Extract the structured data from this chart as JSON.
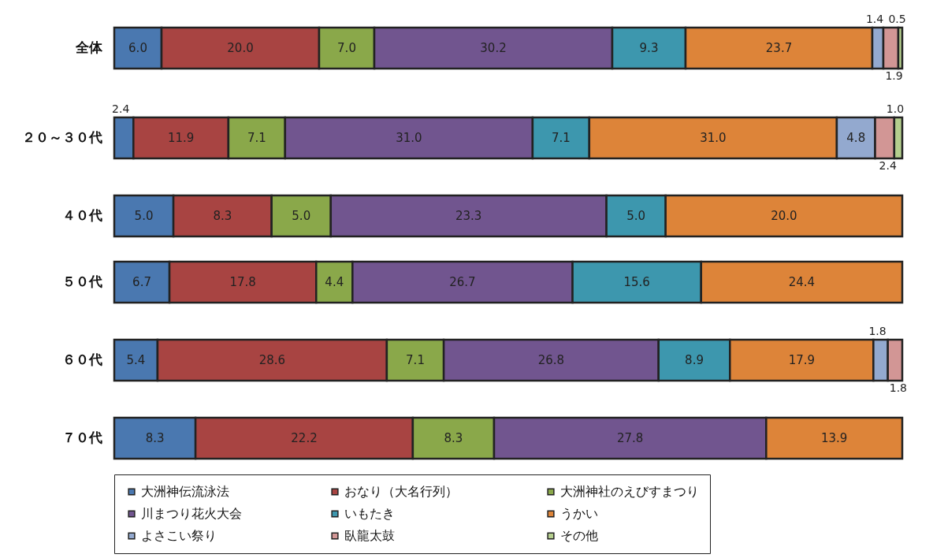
{
  "chart_data": [
    {
      "type": "bar",
      "orientation": "horizontal",
      "stacked": true,
      "legend": false,
      "tick_labels": "y",
      "categories": [
        "全体"
      ],
      "series": [
        {
          "color": "#4a78b0",
          "values": [
            6.0
          ],
          "value_labels": [
            "6.0"
          ]
        },
        {
          "color": "#a84442",
          "values": [
            20.0
          ],
          "value_labels": [
            "20.0"
          ]
        },
        {
          "color": "#8aa84a",
          "values": [
            7.0
          ],
          "value_labels": [
            "7.0"
          ]
        },
        {
          "color": "#71558f",
          "values": [
            30.2
          ],
          "value_labels": [
            "30.2"
          ]
        },
        {
          "color": "#3d97ae",
          "values": [
            9.3
          ],
          "value_labels": [
            "9.3"
          ]
        },
        {
          "color": "#dd8439",
          "values": [
            23.7
          ],
          "value_labels": [
            "23.7"
          ]
        },
        {
          "color": "#93a9cf",
          "values": [
            1.4
          ],
          "value_labels": [
            "1.4"
          ]
        },
        {
          "color": "#d29695",
          "values": [
            1.9
          ],
          "value_labels": [
            "1.9"
          ]
        },
        {
          "color": "#b5cf8e",
          "values": [
            0.5
          ],
          "value_labels": [
            "0.5"
          ]
        }
      ]
    },
    {
      "type": "bar",
      "orientation": "horizontal",
      "stacked": true,
      "legend": false,
      "tick_labels": "y",
      "categories": [
        "２０～３０代"
      ],
      "series": [
        {
          "color": "#4a78b0",
          "values": [
            2.4
          ],
          "value_labels": [
            "2.4"
          ]
        },
        {
          "color": "#a84442",
          "values": [
            11.9
          ],
          "value_labels": [
            "11.9"
          ]
        },
        {
          "color": "#8aa84a",
          "values": [
            7.1
          ],
          "value_labels": [
            "7.1"
          ]
        },
        {
          "color": "#71558f",
          "values": [
            31.0
          ],
          "value_labels": [
            "31.0"
          ]
        },
        {
          "color": "#3d97ae",
          "values": [
            7.1
          ],
          "value_labels": [
            "7.1"
          ]
        },
        {
          "color": "#dd8439",
          "values": [
            31.0
          ],
          "value_labels": [
            "31.0"
          ]
        },
        {
          "color": "#93a9cf",
          "values": [
            4.8
          ],
          "value_labels": [
            "4.8"
          ]
        },
        {
          "color": "#d29695",
          "values": [
            2.4
          ],
          "value_labels": [
            "2.4"
          ]
        },
        {
          "color": "#b5cf8e",
          "values": [
            1.0
          ],
          "value_labels": [
            "1.0"
          ]
        }
      ]
    },
    {
      "type": "bar",
      "orientation": "horizontal",
      "stacked": true,
      "legend": false,
      "tick_labels": "y",
      "categories": [
        "４０代"
      ],
      "series": [
        {
          "color": "#4a78b0",
          "values": [
            5.0
          ],
          "value_labels": [
            "5.0"
          ]
        },
        {
          "color": "#a84442",
          "values": [
            8.3
          ],
          "value_labels": [
            "8.3"
          ]
        },
        {
          "color": "#8aa84a",
          "values": [
            5.0
          ],
          "value_labels": [
            "5.0"
          ]
        },
        {
          "color": "#71558f",
          "values": [
            23.3
          ],
          "value_labels": [
            "23.3"
          ]
        },
        {
          "color": "#3d97ae",
          "values": [
            5.0
          ],
          "value_labels": [
            "5.0"
          ]
        },
        {
          "color": "#dd8439",
          "values": [
            20.0
          ],
          "value_labels": [
            "20.0"
          ]
        }
      ]
    },
    {
      "type": "bar",
      "orientation": "horizontal",
      "stacked": true,
      "legend": false,
      "tick_labels": "y",
      "categories": [
        "５０代"
      ],
      "series": [
        {
          "color": "#4a78b0",
          "values": [
            6.7
          ],
          "value_labels": [
            "6.7"
          ]
        },
        {
          "color": "#a84442",
          "values": [
            17.8
          ],
          "value_labels": [
            "17.8"
          ]
        },
        {
          "color": "#8aa84a",
          "values": [
            4.4
          ],
          "value_labels": [
            "4.4"
          ]
        },
        {
          "color": "#71558f",
          "values": [
            26.7
          ],
          "value_labels": [
            "26.7"
          ]
        },
        {
          "color": "#3d97ae",
          "values": [
            15.6
          ],
          "value_labels": [
            "15.6"
          ]
        },
        {
          "color": "#dd8439",
          "values": [
            24.4
          ],
          "value_labels": [
            "24.4"
          ]
        }
      ]
    },
    {
      "type": "bar",
      "orientation": "horizontal",
      "stacked": true,
      "legend": false,
      "tick_labels": "y",
      "categories": [
        "６０代"
      ],
      "series": [
        {
          "color": "#4a78b0",
          "values": [
            5.4
          ],
          "value_labels": [
            "5.4"
          ]
        },
        {
          "color": "#a84442",
          "values": [
            28.6
          ],
          "value_labels": [
            "28.6"
          ]
        },
        {
          "color": "#8aa84a",
          "values": [
            7.1
          ],
          "value_labels": [
            "7.1"
          ]
        },
        {
          "color": "#71558f",
          "values": [
            26.8
          ],
          "value_labels": [
            "26.8"
          ]
        },
        {
          "color": "#3d97ae",
          "values": [
            8.9
          ],
          "value_labels": [
            "8.9"
          ]
        },
        {
          "color": "#dd8439",
          "values": [
            17.9
          ],
          "value_labels": [
            "17.9"
          ]
        },
        {
          "color": "#93a9cf",
          "values": [
            1.8
          ],
          "value_labels": [
            "1.8"
          ]
        },
        {
          "color": "#d29695",
          "values": [
            1.8
          ],
          "value_labels": [
            "1.8"
          ]
        }
      ]
    },
    {
      "type": "bar",
      "orientation": "horizontal",
      "stacked": true,
      "legend": "bottom",
      "tick_labels": "y",
      "categories": [
        "７０代"
      ],
      "series": [
        {
          "name": "大洲神伝流泳法",
          "color": "#4a78b0",
          "values": [
            8.3
          ],
          "value_labels": [
            "8.3"
          ]
        },
        {
          "name": "おなり（大名行列）",
          "color": "#a84442",
          "values": [
            22.2
          ],
          "value_labels": [
            "22.2"
          ]
        },
        {
          "name": "大洲神社のえびすまつり",
          "color": "#8aa84a",
          "values": [
            8.3
          ],
          "value_labels": [
            "8.3"
          ]
        },
        {
          "name": "川まつり花火大会",
          "color": "#71558f",
          "values": [
            27.8
          ],
          "value_labels": [
            "27.8"
          ]
        },
        {
          "name": "いもたき",
          "color": "#3d97ae",
          "values": [
            null
          ],
          "value_labels": [
            null
          ]
        },
        {
          "name": "うかい",
          "color": "#dd8439",
          "values": [
            13.9
          ],
          "value_labels": [
            "13.9"
          ]
        },
        {
          "name": "よさこい祭り",
          "color": "#93a9cf",
          "values": [
            null
          ],
          "value_labels": [
            null
          ]
        },
        {
          "name": "臥龍太鼓",
          "color": "#d29695",
          "values": [
            null
          ],
          "value_labels": [
            null
          ]
        },
        {
          "name": "その他",
          "color": "#b5cf8e",
          "values": [
            null
          ],
          "value_labels": [
            null
          ]
        }
      ]
    }
  ]
}
